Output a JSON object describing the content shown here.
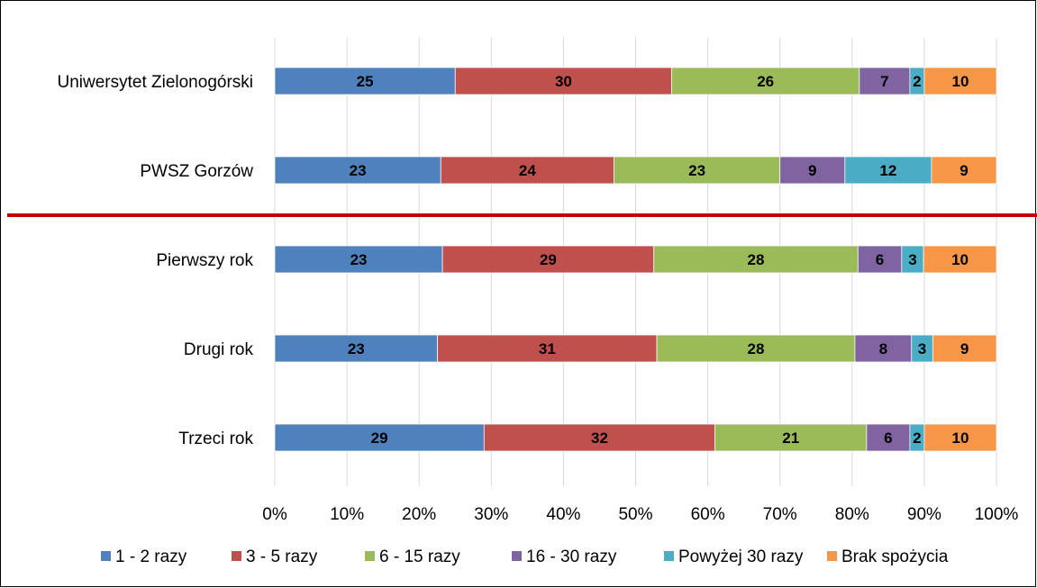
{
  "chart_data": {
    "type": "bar",
    "orientation": "horizontal",
    "stacked": "percent",
    "categories": [
      "Uniwersytet Zielonogórski",
      "PWSZ Gorzów",
      "Pierwszy rok",
      "Drugi rok",
      "Trzeci rok"
    ],
    "series": [
      {
        "name": "1 - 2 razy",
        "color": "#4F81BD",
        "values": [
          25,
          23,
          23,
          23,
          29
        ]
      },
      {
        "name": "3 - 5 razy",
        "color": "#C0504D",
        "values": [
          30,
          24,
          29,
          31,
          32
        ]
      },
      {
        "name": "6 - 15 razy",
        "color": "#9BBB59",
        "values": [
          26,
          23,
          28,
          28,
          21
        ]
      },
      {
        "name": "16 - 30 razy",
        "color": "#8064A2",
        "values": [
          7,
          9,
          6,
          8,
          6
        ]
      },
      {
        "name": "Powyżej 30 razy",
        "color": "#4BACC6",
        "values": [
          2,
          12,
          3,
          3,
          2
        ]
      },
      {
        "name": "Brak spożycia",
        "color": "#F79646",
        "values": [
          10,
          9,
          10,
          9,
          10
        ]
      }
    ],
    "x_ticks": [
      "0%",
      "10%",
      "20%",
      "30%",
      "40%",
      "50%",
      "60%",
      "70%",
      "80%",
      "90%",
      "100%"
    ],
    "xlim": [
      0,
      100
    ],
    "grid": true,
    "legend": "bottom",
    "separator_line_color": "#C00000",
    "separator_after_category": 1
  }
}
